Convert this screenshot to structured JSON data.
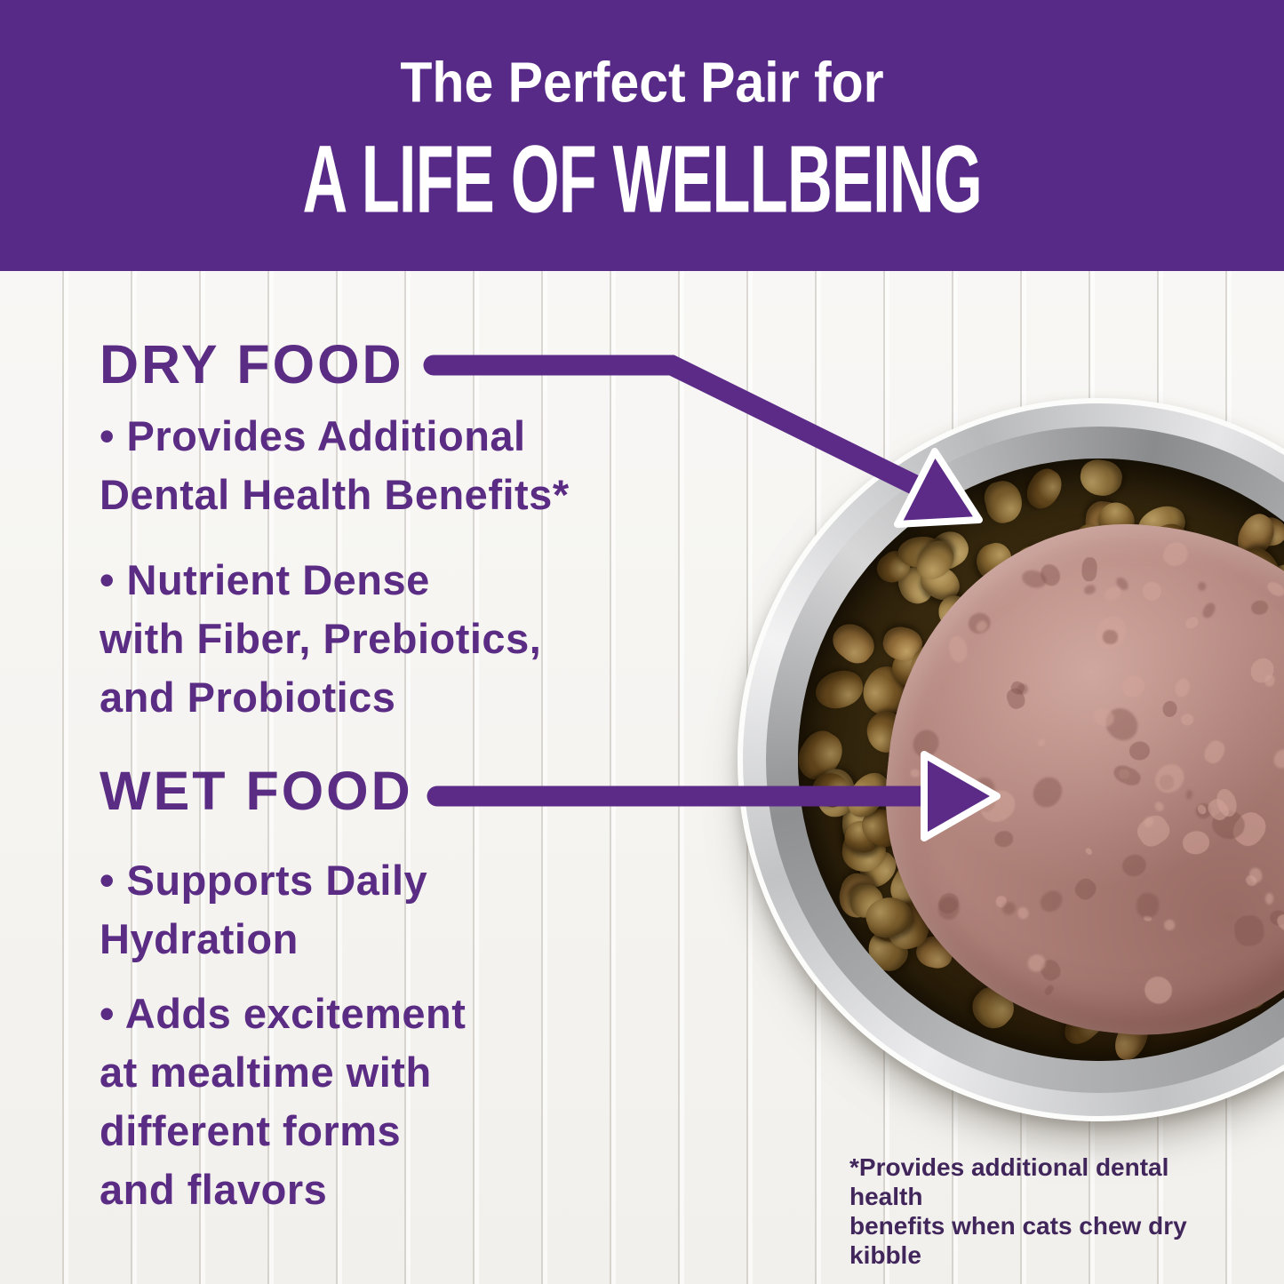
{
  "banner": {
    "line1": "The Perfect Pair for",
    "line2": "A LIFE OF WELLBEING"
  },
  "dry_food": {
    "heading": "DRY FOOD",
    "bullet1": "• Provides Additional\nDental Health Benefits*",
    "bullet2": "• Nutrient Dense\nwith Fiber, Prebiotics,\nand Probiotics"
  },
  "wet_food": {
    "heading": "WET FOOD",
    "bullet1": "• Supports Daily\nHydration",
    "bullet2": "• Adds excitement\nat mealtime with\ndifferent forms\nand flavors"
  },
  "footnote": {
    "text": "*Provides additional dental health\nbenefits when cats chew dry kibble"
  },
  "photo": {
    "description_labels": {
      "bowl": "stainless-steel-bowl",
      "kibble": "dry-kibble",
      "pate": "wet-food-pate"
    }
  },
  "colors": {
    "banner_purple": "#582a88",
    "text_purple": "#5b2c84",
    "arrow_purple": "#5b2b87",
    "footnote_purple": "#41265b",
    "background": "#faf9f7",
    "wet_food_pink": "#b1847c",
    "kibble_palette": [
      "#9c7c42",
      "#8a6a33",
      "#7a5a28",
      "#a8894e",
      "#6e4f20",
      "#96703a"
    ],
    "kibble_speckle": "#d9b86a",
    "bowl_silver": "#c2c3c5"
  }
}
